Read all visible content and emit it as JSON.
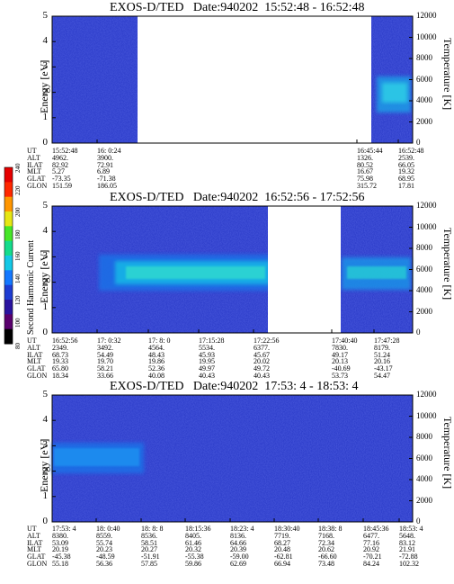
{
  "chart_data": [
    {
      "type": "heatmap",
      "title": "EXOS-D/TED   Date:940202  15:52:48 - 16:52:48",
      "ylabel": "Energy [eV]",
      "y2label": "Temperature [K]",
      "ylim": [
        0,
        5
      ],
      "y2lim": [
        0,
        12000
      ],
      "y_ticks": [
        "0",
        "1",
        "2",
        "3",
        "4",
        "5"
      ],
      "y2_ticks": [
        "0",
        "2000",
        "4000",
        "6000",
        "8000",
        "10000",
        "12000"
      ],
      "data_gap": [
        "16:0:24",
        "16:45:44"
      ],
      "enhancement": {
        "start": "16:45:44",
        "end": "16:52:48",
        "energy_range": [
          1.5,
          3.0
        ]
      },
      "table": {
        "labels": [
          "UT",
          "ALT",
          "ILAT",
          "MLT",
          "GLAT",
          "GLON"
        ],
        "columns": [
          [
            "15:52:48",
            "4962.",
            "82.92",
            "5.27",
            "-73.35",
            "151.59"
          ],
          [
            "16: 0:24",
            "3900.",
            "72.91",
            "6.89",
            "-71.38",
            "186.05"
          ],
          [
            "16:45:44",
            "1326.",
            "80.52",
            "16.67",
            "75.98",
            "315.72"
          ],
          [
            "16:52:48",
            "2539.",
            "66.05",
            "19.32",
            "68.95",
            "17.81"
          ]
        ]
      }
    },
    {
      "type": "heatmap",
      "title": "EXOS-D/TED   Date:940202  16:52:56 - 17:52:56",
      "ylabel": "Energy [eV]",
      "y2label": "Temperature [K]",
      "ylim": [
        0,
        5
      ],
      "y2lim": [
        0,
        12000
      ],
      "y_ticks": [
        "0",
        "1",
        "2",
        "3",
        "4",
        "5"
      ],
      "y2_ticks": [
        "0",
        "2000",
        "4000",
        "6000",
        "8000",
        "10000",
        "12000"
      ],
      "data_gap": [
        "17:22:56",
        "17:40:40"
      ],
      "enhancement": {
        "start": "16:58:00",
        "end": "17:52:56",
        "energy_range": [
          1.8,
          2.8
        ]
      },
      "table": {
        "labels": [
          "UT",
          "ALT",
          "ILAT",
          "MLT",
          "GLAT",
          "GLON"
        ],
        "columns": [
          [
            "16:52:56",
            "2349.",
            "68.73",
            "19.33",
            "65.80",
            "18.34"
          ],
          [
            "17: 0:32",
            "3492.",
            "54.49",
            "19.70",
            "58.21",
            "33.66"
          ],
          [
            "17: 8: 0",
            "4564.",
            "48.43",
            "19.86",
            "52.36",
            "40.08"
          ],
          [
            "17:15:28",
            "5534.",
            "45.93",
            "19.95",
            "49.97",
            "40.43"
          ],
          [
            "17:22:56",
            "6377.",
            "45.67",
            "20.02",
            "49.72",
            "40.43"
          ],
          [
            "17:40:40",
            "7830.",
            "49.17",
            "20.13",
            "-40.69",
            "53.73"
          ],
          [
            "17:47:28",
            "8179.",
            "51.24",
            "20.16",
            "-43.17",
            "54.47"
          ]
        ]
      }
    },
    {
      "type": "heatmap",
      "title": "EXOS-D/TED   Date:940202  17:53: 4 - 18:53: 4",
      "ylabel": "Energy [eV]",
      "y2label": "Temperature [K]",
      "ylim": [
        0,
        5
      ],
      "y2lim": [
        0,
        12000
      ],
      "y_ticks": [
        "0",
        "1",
        "2",
        "3",
        "4",
        "5"
      ],
      "y2_ticks": [
        "0",
        "2000",
        "4000",
        "6000",
        "8000",
        "10000",
        "12000"
      ],
      "data_gap": [],
      "enhancement": {
        "start": "17:53:04",
        "end": "18:08:00",
        "energy_range": [
          2.2,
          3.1
        ]
      },
      "table": {
        "labels": [
          "UT",
          "ALT",
          "ILAT",
          "MLT",
          "GLAT",
          "GLON"
        ],
        "columns": [
          [
            "17:53: 4",
            "8380.",
            "53.09",
            "20.19",
            "-45.38",
            "55.18"
          ],
          [
            "18: 0:40",
            "8559.",
            "55.74",
            "20.23",
            "-48.59",
            "56.36"
          ],
          [
            "18: 8: 8",
            "8536.",
            "58.51",
            "20.27",
            "-51.91",
            "57.85"
          ],
          [
            "18:15:36",
            "8405.",
            "61.46",
            "20.32",
            "-55.38",
            "59.86"
          ],
          [
            "18:23: 4",
            "8136.",
            "64.66",
            "20.39",
            "-59.00",
            "62.69"
          ],
          [
            "18:30:40",
            "7719.",
            "68.27",
            "20.48",
            "-62.81",
            "66.94"
          ],
          [
            "18:38: 8",
            "7168.",
            "72.34",
            "20.62",
            "-66.60",
            "73.48"
          ],
          [
            "18:45:36",
            "6477.",
            "77.16",
            "20.92",
            "-70.21",
            "84.24"
          ],
          [
            "18:53: 4",
            "5648.",
            "83.12",
            "21.91",
            "-72.88",
            "102.32"
          ]
        ]
      }
    }
  ],
  "colorbar": {
    "label": "Second Harmonic Current",
    "ticks": [
      "80",
      "100",
      "120",
      "140",
      "160",
      "180",
      "200",
      "220",
      "240"
    ],
    "colors": [
      "#000000",
      "#5a006e",
      "#2a14a0",
      "#1e3cd2",
      "#1478ff",
      "#14c8e6",
      "#14dc8c",
      "#46e628",
      "#e6e614",
      "#ff9600",
      "#ff2800",
      "#e60000"
    ]
  }
}
